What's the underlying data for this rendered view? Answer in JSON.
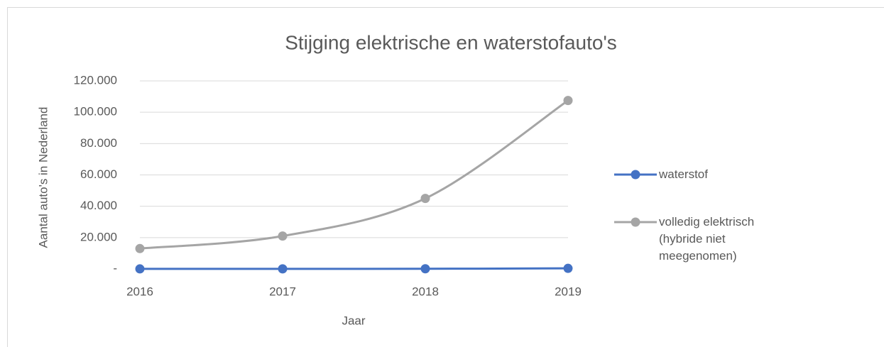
{
  "chart_data": {
    "type": "line",
    "title": "Stijging elektrische en waterstofauto's",
    "x_label": "Jaar",
    "y_label": "Aantal auto's in Nederland",
    "categories": [
      "2016",
      "2017",
      "2018",
      "2019"
    ],
    "series": [
      {
        "name": "waterstof",
        "color": "#4472c4",
        "values": [
          40,
          50,
          100,
          380
        ]
      },
      {
        "name": "volledig elektrisch (hybride niet meegenomen)",
        "color": "#a5a5a5",
        "values": [
          13000,
          21000,
          45000,
          107500
        ]
      }
    ],
    "ylim": [
      0,
      120000
    ],
    "yticks": [
      {
        "value": 0,
        "label": "-"
      },
      {
        "value": 20000,
        "label": "20.000"
      },
      {
        "value": 40000,
        "label": "40.000"
      },
      {
        "value": 60000,
        "label": "60.000"
      },
      {
        "value": 80000,
        "label": "80.000"
      },
      {
        "value": 100000,
        "label": "100.000"
      },
      {
        "value": 120000,
        "label": "120.000"
      }
    ],
    "grid": true,
    "legend": "right",
    "smooth": true
  }
}
